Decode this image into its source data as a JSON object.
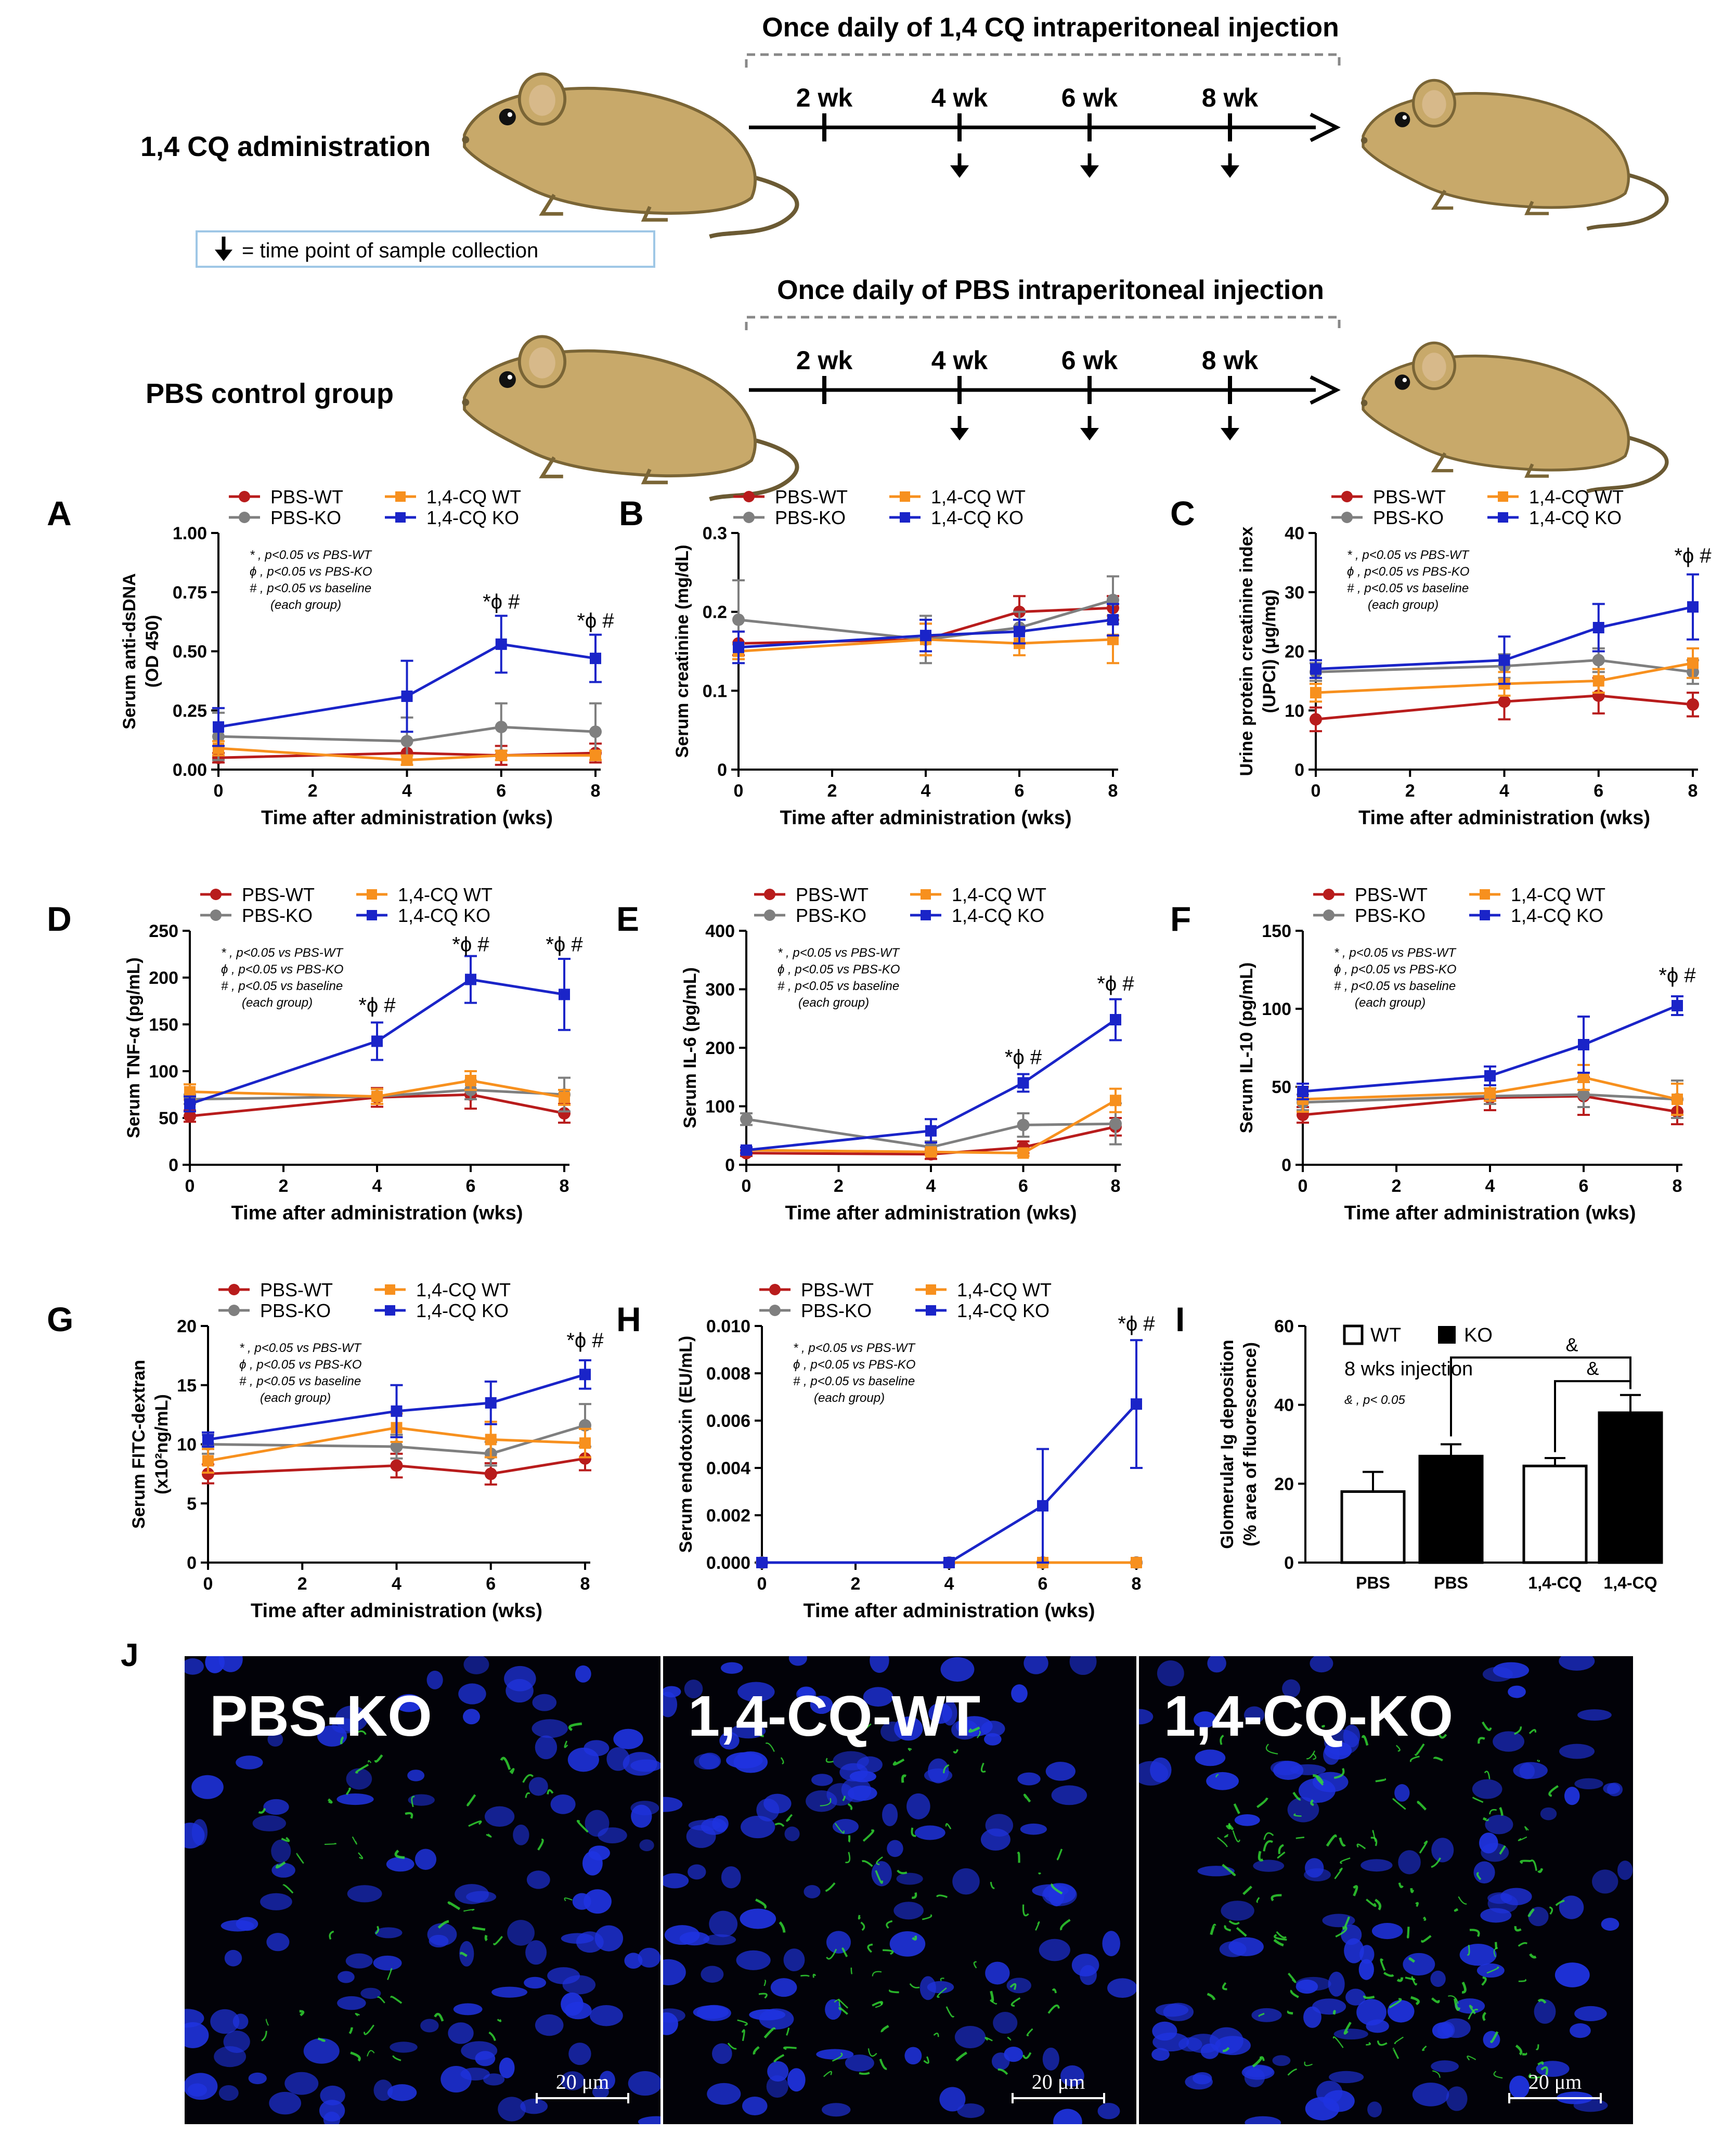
{
  "schematic": {
    "rows": [
      {
        "label": "1,4 CQ administration",
        "header": "Once daily of 1,4 CQ intraperitoneal injection",
        "ticks": [
          "2 wk",
          "4 wk",
          "6 wk",
          "8 wk"
        ],
        "collection_at": [
          "4 wk",
          "6 wk",
          "8 wk"
        ]
      },
      {
        "label": "PBS control group",
        "header": "Once daily of PBS intraperitoneal injection",
        "ticks": [
          "2 wk",
          "4 wk",
          "6 wk",
          "8 wk"
        ],
        "collection_at": [
          "4 wk",
          "6 wk",
          "8 wk"
        ]
      }
    ],
    "legend_text": "= time point of sample collection",
    "icons": [
      "mouse-icon",
      "down-arrow-icon"
    ]
  },
  "colors": {
    "PBS-WT": "#b81c1c",
    "PBS-KO": "#7f7f7f",
    "1,4-CQ WT": "#f7901e",
    "1,4-CQ KO": "#1a24c8"
  },
  "stat_legend": [
    "*  ,  p<0.05 vs PBS-WT",
    "ϕ  ,  p<0.05 vs PBS-KO",
    "#  ,  p<0.05 vs baseline",
    "(each group)"
  ],
  "chart_data": [
    {
      "id": "A",
      "type": "line",
      "xlabel": "Time after administration (wks)",
      "ylabel": [
        "Serum anti-dsDNA",
        "(OD 450)"
      ],
      "x": [
        0,
        4,
        6,
        8
      ],
      "xlim": [
        0,
        8
      ],
      "xticks": [
        0,
        2,
        4,
        6,
        8
      ],
      "ylim": [
        0,
        1.0
      ],
      "yticks": [
        "0.00",
        "0.25",
        "0.50",
        "0.75",
        "1.00"
      ],
      "series": [
        {
          "name": "PBS-WT",
          "values": [
            0.05,
            0.07,
            0.06,
            0.07
          ],
          "err": [
            0.02,
            0.05,
            0.04,
            0.04
          ]
        },
        {
          "name": "PBS-KO",
          "values": [
            0.14,
            0.12,
            0.18,
            0.16
          ],
          "err": [
            0.1,
            0.1,
            0.1,
            0.12
          ]
        },
        {
          "name": "1,4-CQ WT",
          "values": [
            0.09,
            0.04,
            0.06,
            0.06
          ],
          "err": [
            0.03,
            0.02,
            0.02,
            0.02
          ]
        },
        {
          "name": "1,4-CQ KO",
          "values": [
            0.18,
            0.31,
            0.53,
            0.47
          ],
          "err": [
            0.08,
            0.15,
            0.12,
            0.1
          ]
        }
      ],
      "annotations": [
        {
          "x": 6,
          "y": 0.68,
          "text": "*ϕ #"
        },
        {
          "x": 8,
          "y": 0.6,
          "text": "*ϕ #"
        }
      ],
      "stat": true
    },
    {
      "id": "B",
      "type": "line",
      "xlabel": "Time after administration (wks)",
      "ylabel": [
        "Serum creatinine (mg/dL)"
      ],
      "x": [
        0,
        4,
        6,
        8
      ],
      "xlim": [
        0,
        8
      ],
      "xticks": [
        0,
        2,
        4,
        6,
        8
      ],
      "ylim": [
        0,
        0.3
      ],
      "yticks": [
        "0",
        "0.1",
        "0.2",
        "0.3"
      ],
      "series": [
        {
          "name": "PBS-WT",
          "values": [
            0.16,
            0.165,
            0.2,
            0.205
          ],
          "err": [
            0.015,
            0.02,
            0.02,
            0.015
          ]
        },
        {
          "name": "PBS-KO",
          "values": [
            0.19,
            0.165,
            0.18,
            0.215
          ],
          "err": [
            0.05,
            0.03,
            0.02,
            0.03
          ]
        },
        {
          "name": "1,4-CQ WT",
          "values": [
            0.15,
            0.165,
            0.16,
            0.165
          ],
          "err": [
            0.01,
            0.02,
            0.015,
            0.03
          ]
        },
        {
          "name": "1,4-CQ KO",
          "values": [
            0.155,
            0.17,
            0.175,
            0.19
          ],
          "err": [
            0.02,
            0.02,
            0.015,
            0.02
          ]
        }
      ],
      "annotations": [],
      "stat": false
    },
    {
      "id": "C",
      "type": "line",
      "xlabel": "Time after administration (wks)",
      "ylabel": [
        "Urine protein creatinine index",
        "(UPCI) (μg/mg)"
      ],
      "x": [
        0,
        4,
        6,
        8
      ],
      "xlim": [
        0,
        8
      ],
      "xticks": [
        0,
        2,
        4,
        6,
        8
      ],
      "ylim": [
        0,
        40
      ],
      "yticks": [
        "0",
        "10",
        "20",
        "30",
        "40"
      ],
      "series": [
        {
          "name": "PBS-WT",
          "values": [
            8.5,
            11.5,
            12.5,
            11
          ],
          "err": [
            2,
            3,
            3,
            2
          ]
        },
        {
          "name": "PBS-KO",
          "values": [
            16.5,
            17.5,
            18.5,
            16.5
          ],
          "err": [
            1.5,
            2,
            2,
            2
          ]
        },
        {
          "name": "1,4-CQ WT",
          "values": [
            13,
            14.5,
            15,
            18
          ],
          "err": [
            1.5,
            2,
            2,
            2.5
          ]
        },
        {
          "name": "1,4-CQ KO",
          "values": [
            17,
            18.5,
            24,
            27.5
          ],
          "err": [
            1.5,
            4,
            4,
            5.5
          ]
        }
      ],
      "annotations": [
        {
          "x": 8,
          "y": 35,
          "text": "*ϕ #"
        }
      ],
      "stat": true
    },
    {
      "id": "D",
      "type": "line",
      "xlabel": "Time after administration (wks)",
      "ylabel": [
        "Serum TNF-α (pg/mL)"
      ],
      "x": [
        0,
        4,
        6,
        8
      ],
      "xlim": [
        0,
        8
      ],
      "xticks": [
        0,
        2,
        4,
        6,
        8
      ],
      "ylim": [
        0,
        250
      ],
      "yticks": [
        "0",
        "50",
        "100",
        "150",
        "200",
        "250"
      ],
      "series": [
        {
          "name": "PBS-WT",
          "values": [
            52,
            72,
            75,
            55
          ],
          "err": [
            6,
            10,
            15,
            10
          ]
        },
        {
          "name": "PBS-KO",
          "values": [
            70,
            73,
            80,
            75
          ],
          "err": [
            5,
            8,
            10,
            18
          ]
        },
        {
          "name": "1,4-CQ WT",
          "values": [
            78,
            73,
            90,
            72
          ],
          "err": [
            8,
            8,
            10,
            8
          ]
        },
        {
          "name": "1,4-CQ KO",
          "values": [
            65,
            132,
            198,
            182
          ],
          "err": [
            8,
            20,
            25,
            38
          ]
        }
      ],
      "annotations": [
        {
          "x": 4,
          "y": 163,
          "text": "*ϕ #"
        },
        {
          "x": 6,
          "y": 228,
          "text": "*ϕ #"
        },
        {
          "x": 8,
          "y": 228,
          "text": "*ϕ #"
        }
      ],
      "stat": true
    },
    {
      "id": "E",
      "type": "line",
      "xlabel": "Time after administration (wks)",
      "ylabel": [
        "Serum IL-6 (pg/mL)"
      ],
      "x": [
        0,
        4,
        6,
        8
      ],
      "xlim": [
        0,
        8
      ],
      "xticks": [
        0,
        2,
        4,
        6,
        8
      ],
      "ylim": [
        0,
        400
      ],
      "yticks": [
        "0",
        "100",
        "200",
        "300",
        "400"
      ],
      "series": [
        {
          "name": "PBS-WT",
          "values": [
            20,
            18,
            30,
            65
          ],
          "err": [
            5,
            8,
            10,
            15
          ]
        },
        {
          "name": "PBS-KO",
          "values": [
            78,
            30,
            68,
            70
          ],
          "err": [
            10,
            10,
            20,
            35
          ]
        },
        {
          "name": "1,4-CQ WT",
          "values": [
            25,
            22,
            20,
            110
          ],
          "err": [
            5,
            5,
            5,
            20
          ]
        },
        {
          "name": "1,4-CQ KO",
          "values": [
            25,
            58,
            140,
            248
          ],
          "err": [
            5,
            20,
            15,
            35
          ]
        }
      ],
      "annotations": [
        {
          "x": 6,
          "y": 172,
          "text": "*ϕ #"
        },
        {
          "x": 8,
          "y": 298,
          "text": "*ϕ #"
        }
      ],
      "stat": true
    },
    {
      "id": "F",
      "type": "line",
      "xlabel": "Time after administration (wks)",
      "ylabel": [
        "Serum IL-10 (pg/mL)"
      ],
      "x": [
        0,
        4,
        6,
        8
      ],
      "xlim": [
        0,
        8
      ],
      "xticks": [
        0,
        2,
        4,
        6,
        8
      ],
      "ylim": [
        0,
        150
      ],
      "yticks": [
        "0",
        "50",
        "100",
        "150"
      ],
      "series": [
        {
          "name": "PBS-WT",
          "values": [
            32,
            43,
            44,
            34
          ],
          "err": [
            5,
            8,
            12,
            8
          ]
        },
        {
          "name": "PBS-KO",
          "values": [
            40,
            44,
            45,
            42
          ],
          "err": [
            5,
            5,
            8,
            12
          ]
        },
        {
          "name": "1,4-CQ WT",
          "values": [
            42,
            46,
            56,
            42
          ],
          "err": [
            8,
            5,
            8,
            10
          ]
        },
        {
          "name": "1,4-CQ KO",
          "values": [
            47,
            57,
            77,
            102
          ],
          "err": [
            5,
            6,
            18,
            6
          ]
        }
      ],
      "annotations": [
        {
          "x": 8,
          "y": 117,
          "text": "*ϕ #"
        }
      ],
      "stat": true
    },
    {
      "id": "G",
      "type": "line",
      "xlabel": "Time after administration (wks)",
      "ylabel": [
        "Serum FITC-dextran",
        "(x10²ng/mL)"
      ],
      "x": [
        0,
        4,
        6,
        8
      ],
      "xlim": [
        0,
        8
      ],
      "xticks": [
        0,
        2,
        4,
        6,
        8
      ],
      "ylim": [
        0,
        20
      ],
      "yticks": [
        "0",
        "5",
        "10",
        "15",
        "20"
      ],
      "series": [
        {
          "name": "PBS-WT",
          "values": [
            7.5,
            8.2,
            7.5,
            8.8
          ],
          "err": [
            0.8,
            1,
            0.9,
            1
          ]
        },
        {
          "name": "PBS-KO",
          "values": [
            10,
            9.8,
            9.2,
            11.6
          ],
          "err": [
            0.8,
            1,
            1,
            1.8
          ]
        },
        {
          "name": "1,4-CQ WT",
          "values": [
            8.6,
            11.4,
            10.4,
            10.1
          ],
          "err": [
            1,
            1.2,
            1.5,
            1.2
          ]
        },
        {
          "name": "1,4-CQ KO",
          "values": [
            10.4,
            12.8,
            13.5,
            15.9
          ],
          "err": [
            0.6,
            2.2,
            1.8,
            1.2
          ]
        }
      ],
      "annotations": [
        {
          "x": 8,
          "y": 18.2,
          "text": "*ϕ #"
        }
      ],
      "stat": true
    },
    {
      "id": "H",
      "type": "line",
      "xlabel": "Time after administration (wks)",
      "ylabel": [
        "Serum endotoxin (EU/mL)"
      ],
      "x": [
        0,
        4,
        6,
        8
      ],
      "xlim": [
        0,
        8
      ],
      "xticks": [
        0,
        2,
        4,
        6,
        8
      ],
      "ylim": [
        0,
        0.01
      ],
      "yticks": [
        "0.000",
        "0.002",
        "0.004",
        "0.006",
        "0.008",
        "0.010"
      ],
      "series": [
        {
          "name": "PBS-WT",
          "values": [
            0,
            0,
            0,
            0
          ],
          "err": [
            0,
            0,
            0,
            0
          ]
        },
        {
          "name": "PBS-KO",
          "values": [
            0,
            0,
            0,
            0
          ],
          "err": [
            0,
            0,
            0,
            0
          ]
        },
        {
          "name": "1,4-CQ WT",
          "values": [
            0,
            0,
            0,
            0
          ],
          "err": [
            0,
            0,
            0,
            0
          ]
        },
        {
          "name": "1,4-CQ KO",
          "values": [
            0,
            0,
            0.0024,
            0.0067
          ],
          "err": [
            0,
            0,
            0.0024,
            0.0027
          ]
        }
      ],
      "annotations": [
        {
          "x": 8,
          "y": 0.0098,
          "text": "*ϕ #"
        }
      ],
      "stat": true
    },
    {
      "id": "I",
      "type": "bar",
      "ylabel": [
        "Glomerular Ig deposition",
        "(% area of fluorescence)"
      ],
      "categories": [
        "PBS",
        "PBS",
        "1,4-CQ",
        "1,4-CQ"
      ],
      "groups": [
        "WT",
        "KO",
        "WT",
        "KO"
      ],
      "values": [
        18,
        27,
        24.5,
        38
      ],
      "err": [
        5,
        3,
        2,
        4.5
      ],
      "ylim": [
        0,
        60
      ],
      "yticks": [
        "0",
        "20",
        "40",
        "60"
      ],
      "legend": [
        "WT",
        "KO"
      ],
      "note": "8 wks injection",
      "sig_note": "& , p< 0.05",
      "brackets": [
        {
          "from": 1,
          "to": 3,
          "text": "&"
        },
        {
          "from": 2,
          "to": 3,
          "text": "&"
        }
      ]
    }
  ],
  "micrographs": [
    {
      "label": "PBS-KO",
      "scale": "20 μm"
    },
    {
      "label": "1,4-CQ-WT",
      "scale": "20 μm"
    },
    {
      "label": "1,4-CQ-KO",
      "scale": "20 μm"
    }
  ],
  "panel_letters": [
    "A",
    "B",
    "C",
    "D",
    "E",
    "F",
    "G",
    "H",
    "I",
    "J"
  ]
}
